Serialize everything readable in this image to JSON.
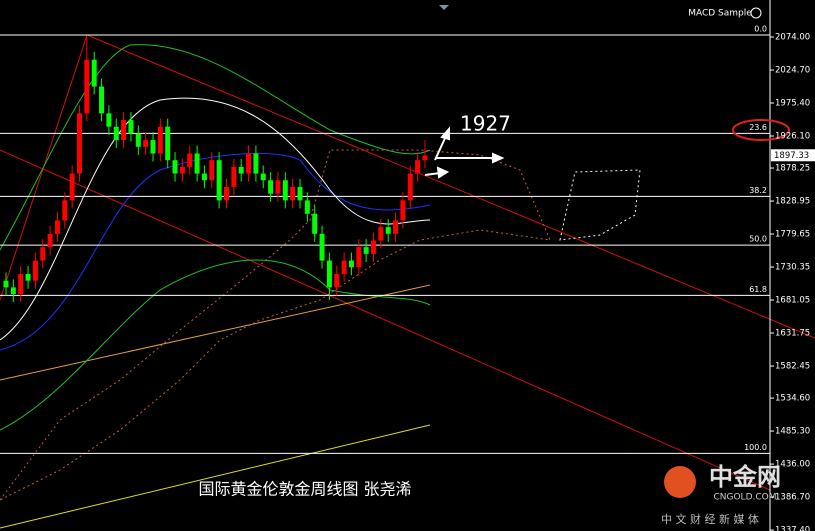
{
  "chart_data": {
    "type": "candlestick",
    "title": "国际黄金伦敦金周线图 张尧浠",
    "indicator": "MACD Sample",
    "annotation": "1927",
    "up_color": "#ff0000",
    "down_color": "#00ff00",
    "categories": [
      null,
      null,
      null,
      null,
      null,
      null,
      null,
      null,
      null,
      null,
      null,
      null,
      null,
      null,
      null,
      null,
      null,
      null,
      null,
      null,
      null,
      null,
      null,
      null,
      null,
      null,
      null,
      null,
      null,
      null,
      null,
      null,
      null,
      null,
      null,
      null,
      null,
      null,
      null,
      null,
      null,
      null,
      null,
      null,
      null,
      null,
      null,
      null,
      null,
      null,
      null,
      null,
      null,
      null,
      null,
      null,
      null,
      null
    ],
    "open": [
      1710,
      1700,
      1690,
      1720,
      1710,
      1740,
      1760,
      1780,
      1800,
      1830,
      1870,
      1960,
      2040,
      2000,
      1960,
      1940,
      1920,
      1950,
      1930,
      1910,
      1920,
      1900,
      1940,
      1890,
      1870,
      1880,
      1900,
      1870,
      1860,
      1890,
      1830,
      1850,
      1880,
      1870,
      1900,
      1870,
      1860,
      1840,
      1860,
      1830,
      1850,
      1830,
      1810,
      1780,
      1740,
      1700,
      1720,
      1740,
      1730,
      1760,
      1750,
      1770,
      1790,
      1780,
      1800,
      1830,
      1870,
      1890
    ],
    "high": [
      1722,
      1712,
      1732,
      1732,
      1752,
      1772,
      1792,
      1812,
      1842,
      1882,
      1972,
      2074,
      2052,
      2012,
      1972,
      1952,
      1962,
      1962,
      1942,
      1932,
      1932,
      1952,
      1952,
      1902,
      1892,
      1912,
      1912,
      1882,
      1902,
      1902,
      1862,
      1892,
      1892,
      1912,
      1912,
      1882,
      1872,
      1872,
      1872,
      1862,
      1862,
      1842,
      1822,
      1792,
      1752,
      1732,
      1752,
      1752,
      1772,
      1772,
      1782,
      1802,
      1802,
      1812,
      1842,
      1882,
      1902,
      1920
    ],
    "low": [
      1688,
      1678,
      1678,
      1698,
      1698,
      1728,
      1748,
      1768,
      1788,
      1818,
      1858,
      1948,
      1988,
      1948,
      1928,
      1908,
      1908,
      1918,
      1898,
      1898,
      1888,
      1888,
      1878,
      1858,
      1858,
      1868,
      1858,
      1848,
      1848,
      1818,
      1818,
      1838,
      1858,
      1858,
      1858,
      1848,
      1828,
      1828,
      1818,
      1818,
      1818,
      1798,
      1768,
      1728,
      1681,
      1688,
      1708,
      1718,
      1718,
      1738,
      1738,
      1758,
      1768,
      1768,
      1788,
      1818,
      1858,
      1878
    ],
    "close": [
      1700,
      1690,
      1720,
      1710,
      1740,
      1760,
      1780,
      1800,
      1830,
      1870,
      1960,
      2040,
      2000,
      1960,
      1940,
      1920,
      1950,
      1930,
      1910,
      1920,
      1900,
      1940,
      1890,
      1870,
      1880,
      1900,
      1870,
      1860,
      1890,
      1830,
      1850,
      1880,
      1870,
      1900,
      1870,
      1860,
      1840,
      1860,
      1830,
      1850,
      1830,
      1810,
      1780,
      1740,
      1700,
      1720,
      1740,
      1730,
      1760,
      1750,
      1770,
      1790,
      1780,
      1800,
      1830,
      1870,
      1890,
      1897
    ],
    "ylim": [
      1336.0,
      2129.3
    ],
    "yticks": [
      {
        "value": 2074,
        "label": "2074.00"
      },
      {
        "value": 2024.7,
        "label": "2024.70"
      },
      {
        "value": 1975.4,
        "label": "1975.40"
      },
      {
        "value": 1926.1,
        "label": "1926.10"
      },
      1878.25,
      1828.95,
      1779.65,
      1730.35,
      1681.05,
      1631.75,
      1582.45,
      {
        "value": 1534.6,
        "label": "1534.60"
      },
      {
        "value": 1485.3,
        "label": "1485.30"
      },
      {
        "value": 1436,
        "label": "1436.00"
      },
      {
        "value": 1386.7,
        "label": "1386.70"
      },
      {
        "value": 1337.4,
        "label": "1337.40"
      }
    ],
    "fib_levels": [
      {
        "value": 2077,
        "label": "0.0"
      },
      {
        "value": 1930,
        "label": "23.6"
      },
      {
        "value": 1836,
        "label": "38.2"
      },
      {
        "value": 1763,
        "label": "50.0"
      },
      {
        "value": 1688,
        "label": "61.8"
      },
      {
        "value": 1452,
        "label": "100.0"
      }
    ],
    "last_price": 1897.33
  },
  "watermark": {
    "brand": "中金网",
    "site": "CNGOLD.COM",
    "slogan": "中 文 财 经 新 媒 体"
  }
}
